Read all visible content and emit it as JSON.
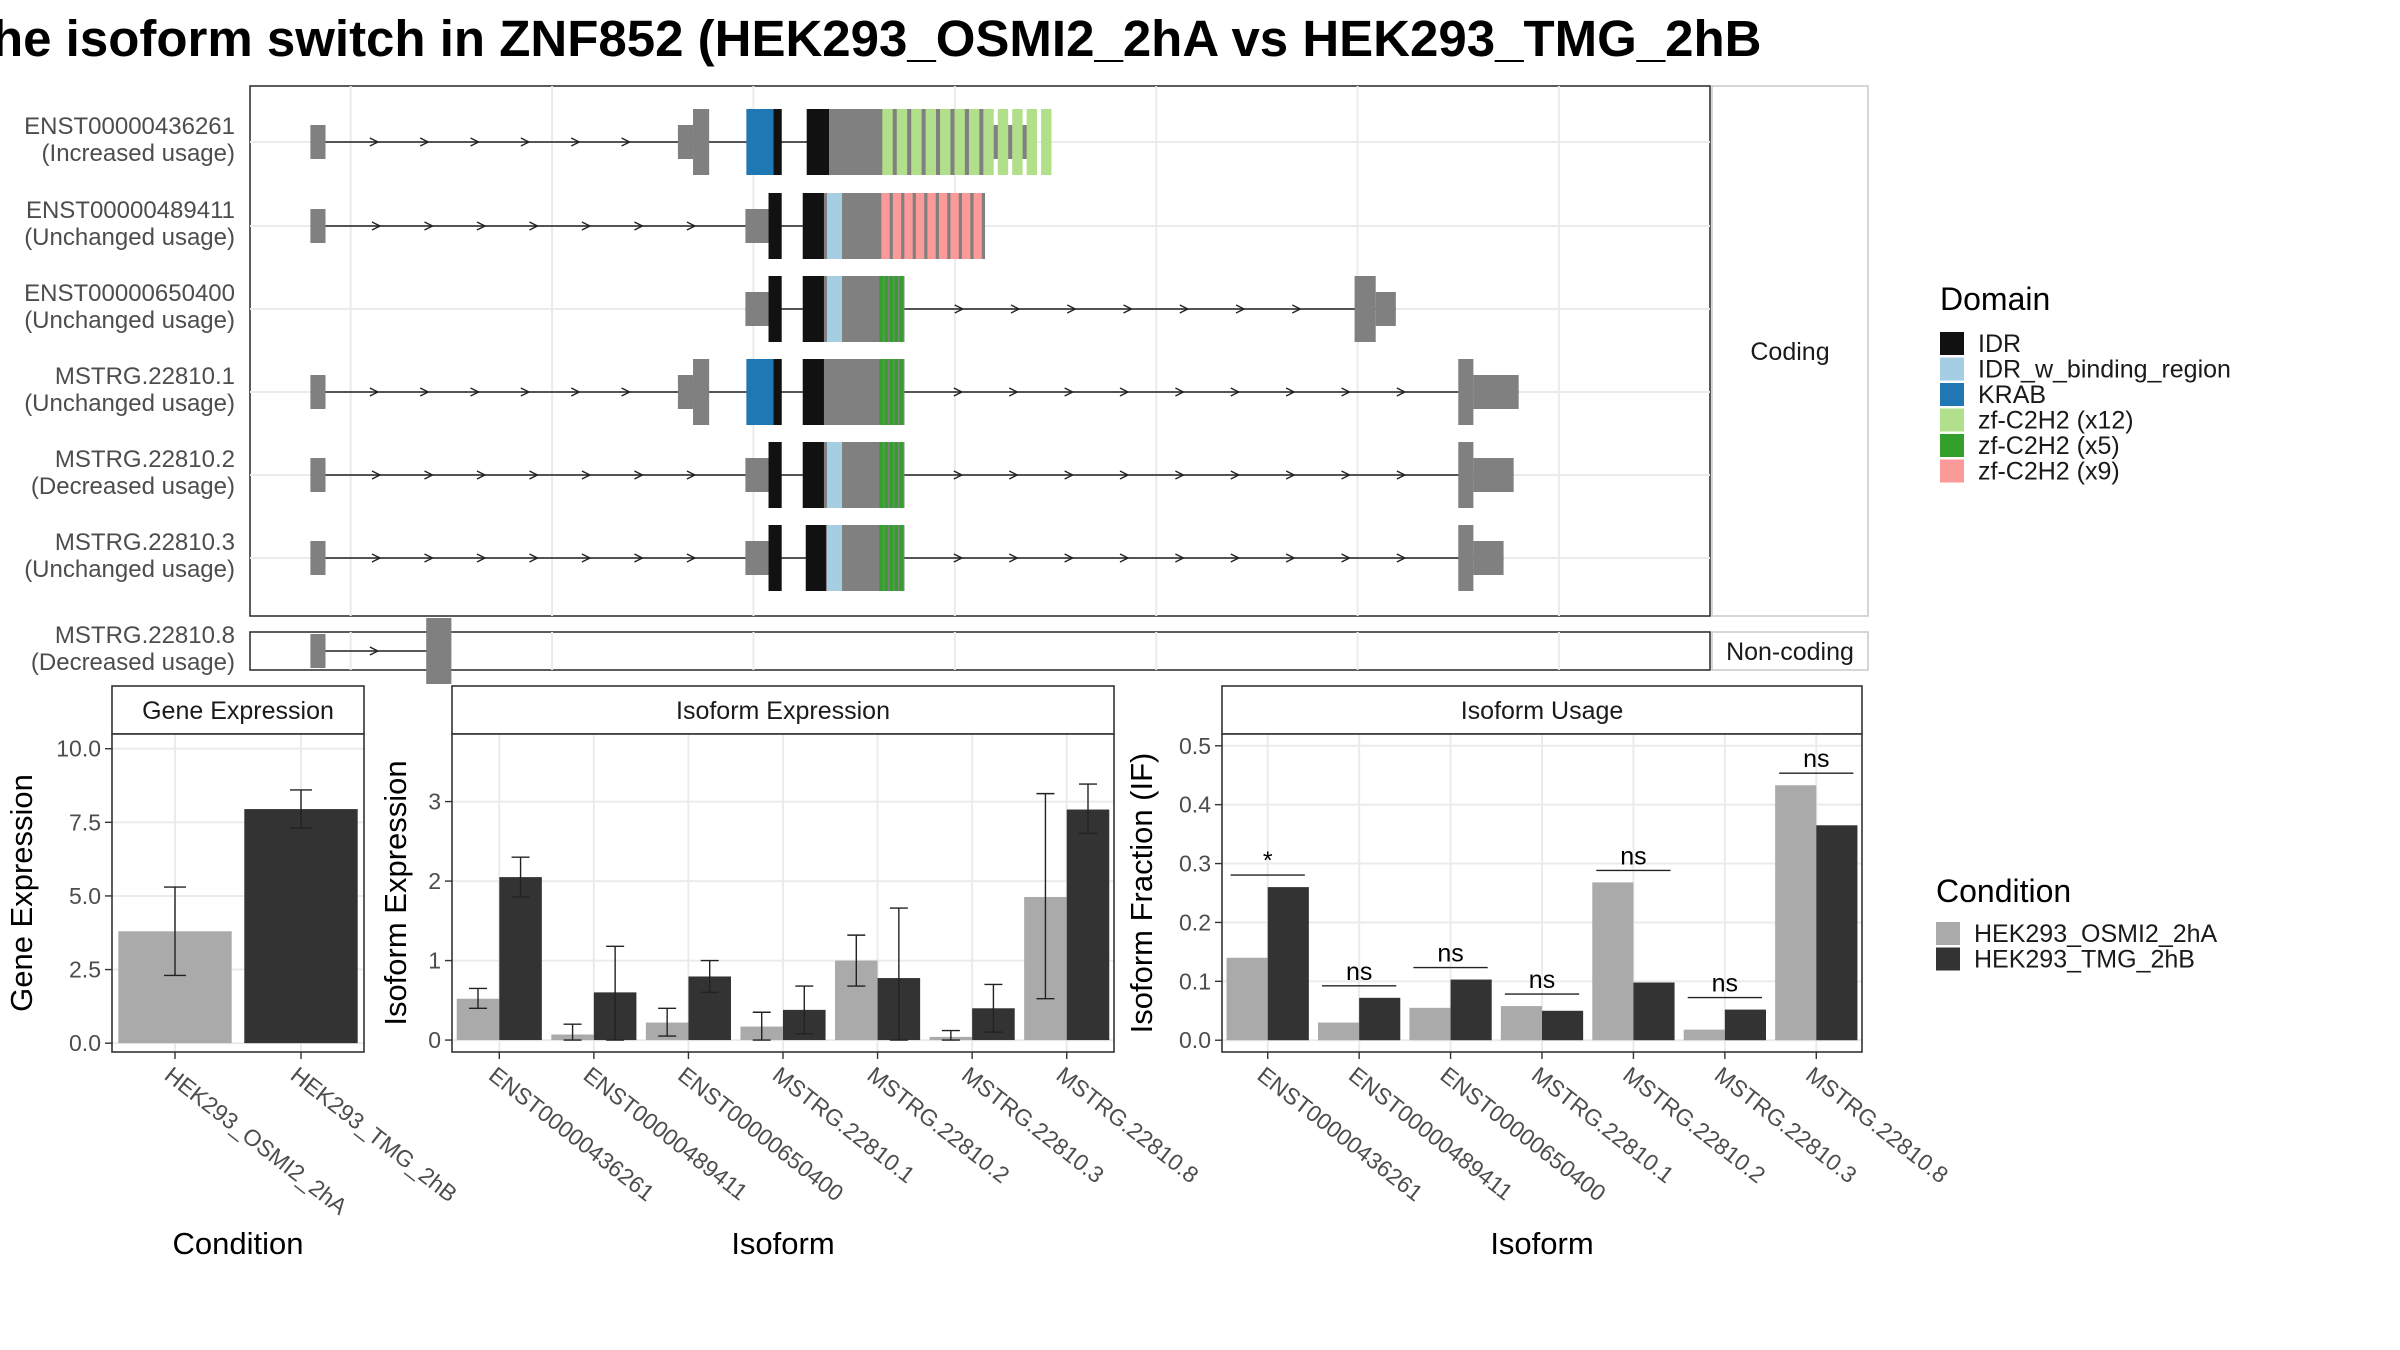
{
  "title": "he isoform switch in ZNF852 (HEK293_OSMI2_2hA vs HEK293_TMG_2hB",
  "colors": {
    "IDR": "#111111",
    "IDR_w_binding_region": "#a6cee3",
    "KRAB": "#1f78b4",
    "zf12": "#b2df8a",
    "zf5": "#33a02c",
    "zf9": "#fb9a99",
    "exon": "#808080",
    "cond1": "#aaaaaa",
    "cond2": "#333333"
  },
  "structure": {
    "panels": [
      {
        "label": "Coding"
      },
      {
        "label": "Non-coding"
      }
    ],
    "isoforms": [
      {
        "id": "ENST00000436261",
        "usage": "(Increased usage)",
        "exons": [
          [
            160,
            175,
            "s"
          ],
          [
            525,
            540,
            "s"
          ],
          [
            540,
            556,
            "b"
          ],
          [
            593,
            620,
            "b"
          ],
          [
            620,
            628,
            "k"
          ],
          [
            653,
            675,
            "k"
          ],
          [
            675,
            830,
            "b"
          ],
          [
            830,
            880,
            "s"
          ]
        ],
        "domains": [
          [
            593,
            620,
            "KRAB"
          ],
          [
            620,
            628,
            "IDR"
          ],
          [
            653,
            675,
            "IDR"
          ],
          [
            728,
            900,
            "zf12"
          ]
        ]
      },
      {
        "id": "ENST00000489411",
        "usage": "(Unchanged usage)",
        "exons": [
          [
            160,
            175,
            "s"
          ],
          [
            592,
            615,
            "s"
          ],
          [
            615,
            628,
            "b"
          ],
          [
            649,
            830,
            "b"
          ]
        ],
        "domains": [
          [
            615,
            628,
            "IDR"
          ],
          [
            649,
            670,
            "IDR"
          ],
          [
            673,
            688,
            "IDR_w_binding_region"
          ],
          [
            727,
            830,
            "zf9"
          ]
        ]
      },
      {
        "id": "ENST00000650400",
        "usage": "(Unchanged usage)",
        "exons": [
          [
            592,
            615,
            "s"
          ],
          [
            615,
            628,
            "b"
          ],
          [
            649,
            750,
            "b"
          ],
          [
            1197,
            1218,
            "b"
          ],
          [
            1218,
            1238,
            "s"
          ]
        ],
        "domains": [
          [
            615,
            628,
            "IDR"
          ],
          [
            649,
            670,
            "IDR"
          ],
          [
            673,
            688,
            "IDR_w_binding_region"
          ],
          [
            725,
            750,
            "zf5"
          ]
        ]
      },
      {
        "id": "MSTRG.22810.1",
        "usage": "(Unchanged usage)",
        "exons": [
          [
            160,
            175,
            "s"
          ],
          [
            525,
            540,
            "s"
          ],
          [
            540,
            556,
            "b"
          ],
          [
            593,
            620,
            "b"
          ],
          [
            620,
            628,
            "k"
          ],
          [
            649,
            750,
            "b"
          ],
          [
            1300,
            1315,
            "b"
          ],
          [
            1315,
            1360,
            "s"
          ]
        ],
        "domains": [
          [
            593,
            620,
            "KRAB"
          ],
          [
            620,
            628,
            "IDR"
          ],
          [
            649,
            670,
            "IDR"
          ],
          [
            725,
            750,
            "zf5"
          ]
        ]
      },
      {
        "id": "MSTRG.22810.2",
        "usage": "(Decreased usage)",
        "exons": [
          [
            160,
            175,
            "s"
          ],
          [
            592,
            615,
            "s"
          ],
          [
            615,
            628,
            "b"
          ],
          [
            649,
            750,
            "b"
          ],
          [
            1300,
            1315,
            "b"
          ],
          [
            1315,
            1355,
            "s"
          ]
        ],
        "domains": [
          [
            615,
            628,
            "IDR"
          ],
          [
            649,
            670,
            "IDR"
          ],
          [
            673,
            688,
            "IDR_w_binding_region"
          ],
          [
            725,
            750,
            "zf5"
          ]
        ]
      },
      {
        "id": "MSTRG.22810.3",
        "usage": "(Unchanged usage)",
        "exons": [
          [
            160,
            175,
            "s"
          ],
          [
            592,
            615,
            "s"
          ],
          [
            615,
            628,
            "b"
          ],
          [
            652,
            750,
            "b"
          ],
          [
            1300,
            1315,
            "b"
          ],
          [
            1315,
            1345,
            "s"
          ]
        ],
        "domains": [
          [
            615,
            628,
            "IDR"
          ],
          [
            652,
            672,
            "IDR"
          ],
          [
            673,
            688,
            "IDR_w_binding_region"
          ],
          [
            725,
            750,
            "zf5"
          ]
        ]
      },
      {
        "id": "MSTRG.22810.8",
        "usage": "(Decreased usage)",
        "exons": [
          [
            160,
            175,
            "s"
          ],
          [
            275,
            300,
            "b"
          ]
        ],
        "domains": []
      }
    ],
    "xlim": [
      100,
      1550
    ]
  },
  "legends": {
    "domain": {
      "title": "Domain",
      "items": [
        {
          "label": "IDR",
          "color": "#111111"
        },
        {
          "label": "IDR_w_binding_region",
          "color": "#a6cee3"
        },
        {
          "label": "KRAB",
          "color": "#1f78b4"
        },
        {
          "label": "zf-C2H2 (x12)",
          "color": "#b2df8a"
        },
        {
          "label": "zf-C2H2 (x5)",
          "color": "#33a02c"
        },
        {
          "label": "zf-C2H2 (x9)",
          "color": "#fb9a99"
        }
      ]
    },
    "condition": {
      "title": "Condition",
      "items": [
        {
          "label": "HEK293_OSMI2_2hA",
          "color": "#aaaaaa"
        },
        {
          "label": "HEK293_TMG_2hB",
          "color": "#333333"
        }
      ]
    }
  },
  "chart_data": [
    {
      "type": "bar",
      "title": "Gene Expression",
      "xlabel": "Condition",
      "ylabel": "Gene Expression",
      "categories": [
        "HEK293_OSMI2_2hA",
        "HEK293_TMG_2hB"
      ],
      "values": [
        3.8,
        7.95
      ],
      "errors": [
        [
          2.3,
          5.3
        ],
        [
          7.3,
          8.6
        ]
      ],
      "ylim": [
        -0.3,
        10.5
      ],
      "yticks": [
        "0.0",
        "2.5",
        "5.0",
        "7.5",
        "10.0"
      ],
      "grid": true
    },
    {
      "type": "bar",
      "title": "Isoform Expression",
      "xlabel": "Isoform",
      "ylabel": "Isoform Expression",
      "categories": [
        "ENST00000436261",
        "ENST00000489411",
        "ENST00000650400",
        "MSTRG.22810.1",
        "MSTRG.22810.2",
        "MSTRG.22810.3",
        "MSTRG.22810.8"
      ],
      "series": [
        {
          "name": "HEK293_OSMI2_2hA",
          "values": [
            0.52,
            0.07,
            0.22,
            0.17,
            1.0,
            0.04,
            1.8
          ],
          "errors": [
            [
              0.4,
              0.65
            ],
            [
              0.0,
              0.2
            ],
            [
              0.05,
              0.4
            ],
            [
              0.0,
              0.35
            ],
            [
              0.68,
              1.32
            ],
            [
              0.0,
              0.12
            ],
            [
              0.52,
              3.1
            ]
          ]
        },
        {
          "name": "HEK293_TMG_2hB",
          "values": [
            2.05,
            0.6,
            0.8,
            0.38,
            0.78,
            0.4,
            2.9
          ],
          "errors": [
            [
              1.8,
              2.3
            ],
            [
              0.0,
              1.18
            ],
            [
              0.6,
              1.0
            ],
            [
              0.08,
              0.68
            ],
            [
              0.0,
              1.66
            ],
            [
              0.1,
              0.7
            ],
            [
              2.6,
              3.22
            ]
          ]
        }
      ],
      "ylim": [
        -0.15,
        3.85
      ],
      "yticks": [
        "0",
        "1",
        "2",
        "3"
      ],
      "grid": true
    },
    {
      "type": "bar",
      "title": "Isoform Usage",
      "xlabel": "Isoform",
      "ylabel": "Isoform Fraction (IF)",
      "categories": [
        "ENST00000436261",
        "ENST00000489411",
        "ENST00000650400",
        "MSTRG.22810.1",
        "MSTRG.22810.2",
        "MSTRG.22810.3",
        "MSTRG.22810.8"
      ],
      "series": [
        {
          "name": "HEK293_OSMI2_2hA",
          "values": [
            0.14,
            0.03,
            0.055,
            0.058,
            0.268,
            0.018,
            0.433
          ]
        },
        {
          "name": "HEK293_TMG_2hB",
          "values": [
            0.26,
            0.072,
            0.103,
            0.05,
            0.098,
            0.052,
            0.365
          ]
        }
      ],
      "significance": [
        "*",
        "ns",
        "ns",
        "ns",
        "ns",
        "ns",
        "ns"
      ],
      "ylim": [
        -0.02,
        0.52
      ],
      "yticks": [
        "0.0",
        "0.1",
        "0.2",
        "0.3",
        "0.4",
        "0.5"
      ],
      "grid": true
    }
  ]
}
